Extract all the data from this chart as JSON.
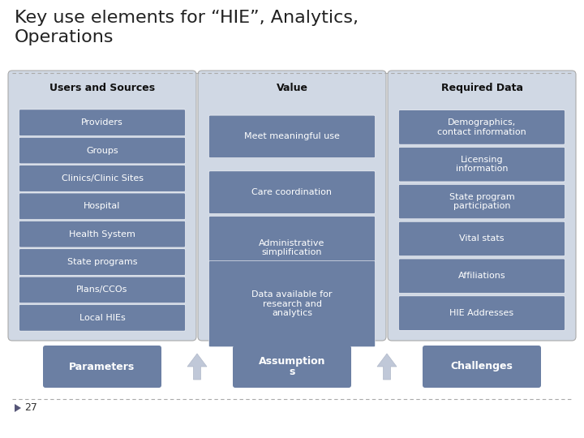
{
  "title": "Key use elements for “HIE”, Analytics,\nOperations",
  "title_fontsize": 16,
  "bg_color": "#ffffff",
  "panel_bg": "#d0d8e4",
  "box_color": "#6b7fa3",
  "box_text_color": "#ffffff",
  "panel_border": "#aaaaaa",
  "col1_header": "Users and Sources",
  "col2_header": "Value",
  "col3_header": "Required Data",
  "col1_items": [
    "Providers",
    "Groups",
    "Clinics/Clinic Sites",
    "Hospital",
    "Health System",
    "State programs",
    "Plans/CCOs",
    "Local HIEs"
  ],
  "col2_items": [
    "Meet meaningful use",
    "Care coordination",
    "Administrative\nsimplification",
    "Data available for\nresearch and\nanalytics"
  ],
  "col3_items": [
    "Demographics,\ncontact information",
    "Licensing\ninformation",
    "State program\nparticipation",
    "Vital stats",
    "Affiliations",
    "HIE Addresses"
  ],
  "bottom_boxes": [
    "Parameters",
    "Assumption\ns",
    "Challenges"
  ],
  "slide_number": "27",
  "arrow_color": "#c0c8d8"
}
